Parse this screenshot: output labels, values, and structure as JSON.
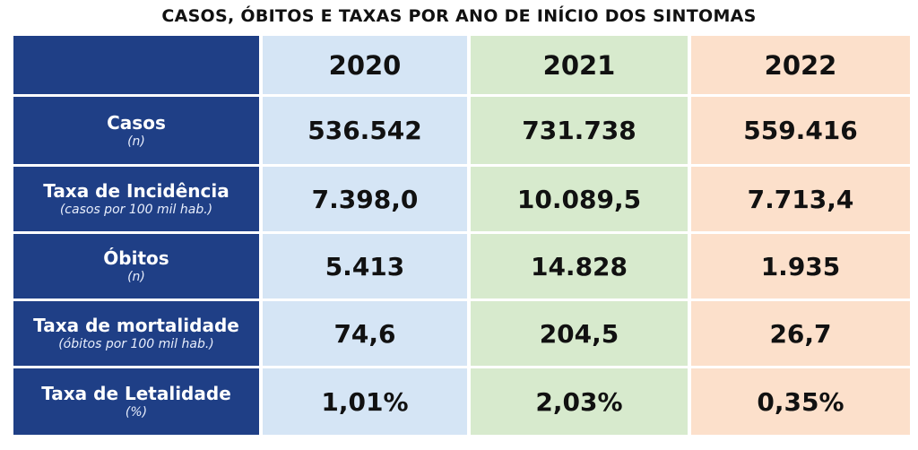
{
  "chart_data": {
    "type": "table",
    "title": "CASOS, ÓBITOS E TAXAS POR ANO DE INÍCIO DOS SINTOMAS",
    "columns": [
      "2020",
      "2021",
      "2022"
    ],
    "rows": [
      {
        "label": "Casos",
        "sublabel": "(n)",
        "values": [
          "536.542",
          "731.738",
          "559.416"
        ]
      },
      {
        "label": "Taxa de Incidência",
        "sublabel": "(casos por 100 mil hab.)",
        "values": [
          "7.398,0",
          "10.089,5",
          "7.713,4"
        ]
      },
      {
        "label": "Óbitos",
        "sublabel": "(n)",
        "values": [
          "5.413",
          "14.828",
          "1.935"
        ]
      },
      {
        "label": "Taxa de mortalidade",
        "sublabel": "(óbitos por 100 mil hab.)",
        "values": [
          "74,6",
          "204,5",
          "26,7"
        ]
      },
      {
        "label": "Taxa de Letalidade",
        "sublabel": "(%)",
        "values": [
          "1,01%",
          "2,03%",
          "0,35%"
        ]
      }
    ]
  },
  "colors": {
    "row_header_bg": "#1f3f86",
    "col_2020_bg": "#d5e5f5",
    "col_2021_bg": "#d7eacd",
    "col_2022_bg": "#fce0cb"
  }
}
